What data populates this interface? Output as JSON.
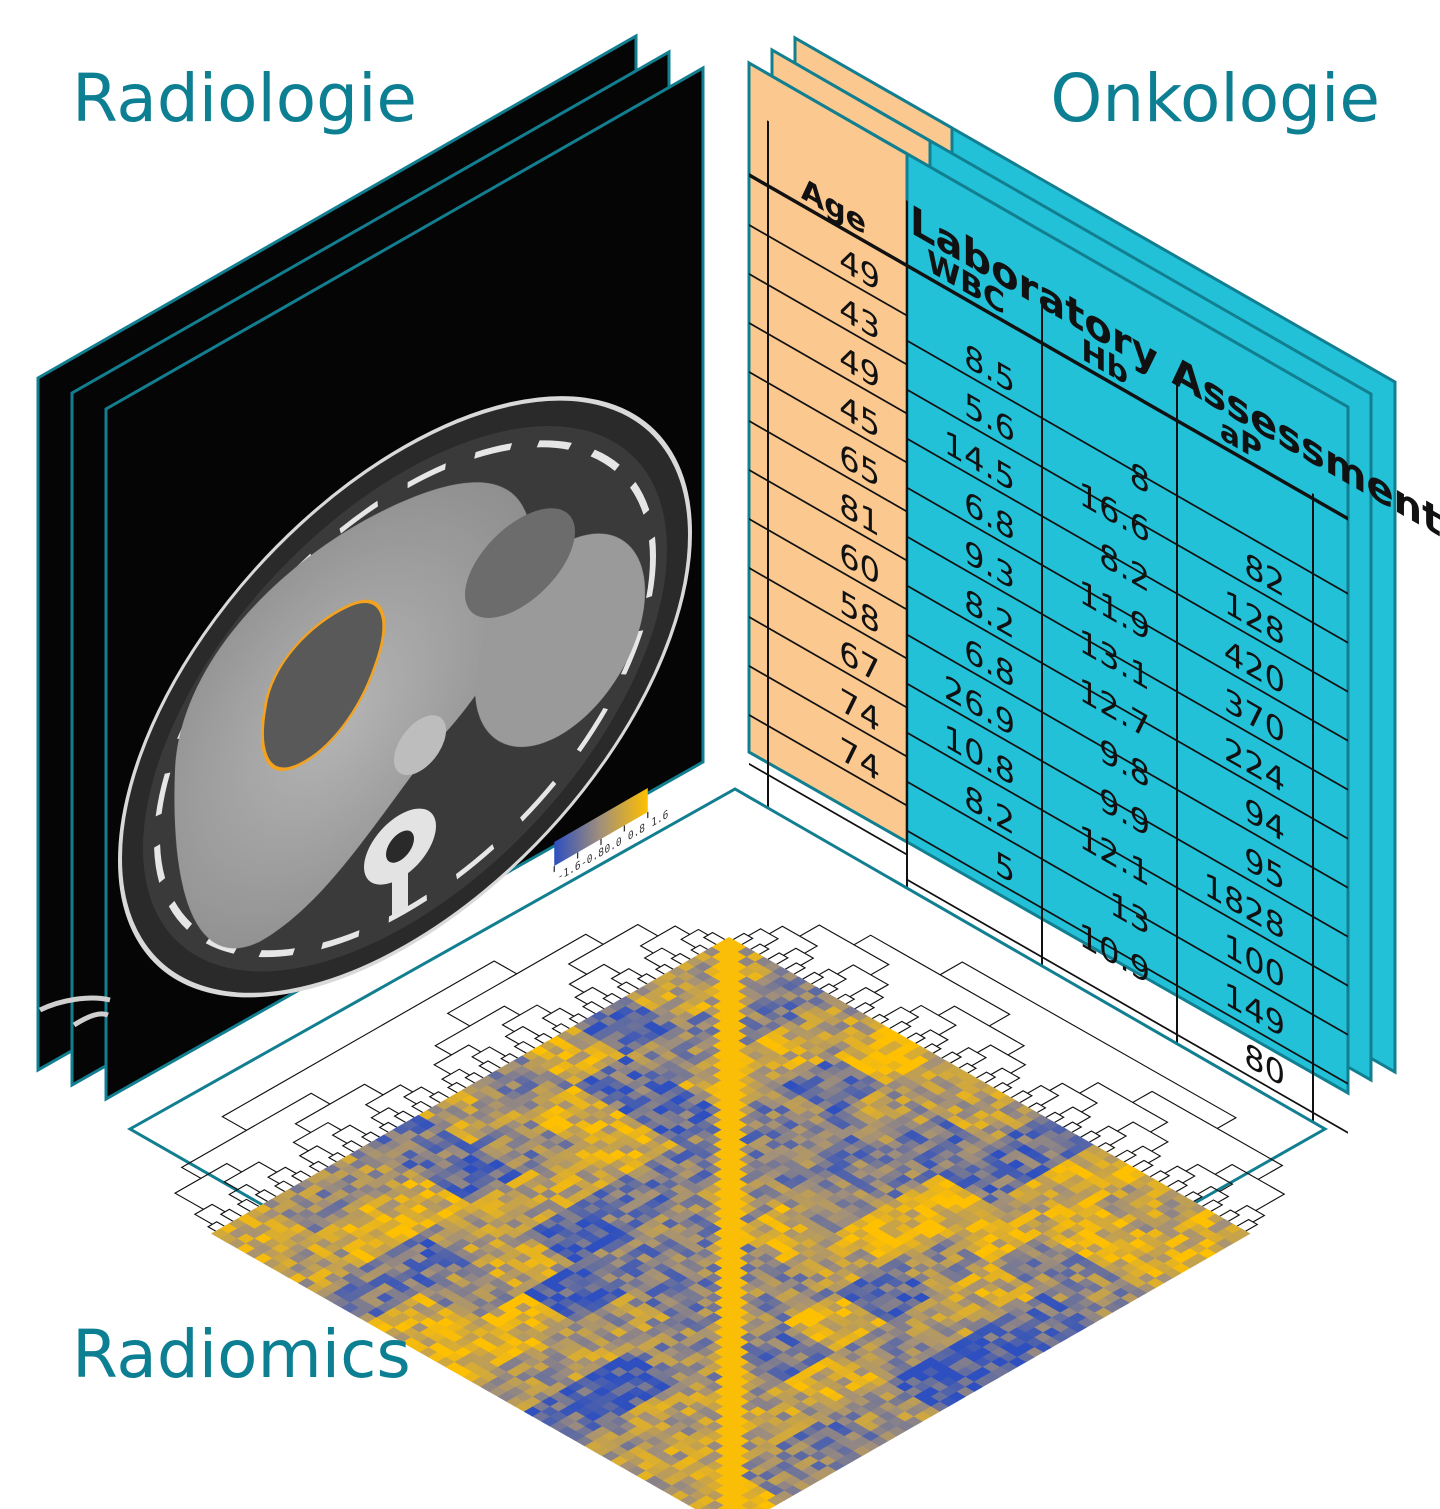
{
  "labels": {
    "radiologie": "Radiologie",
    "onkologie": "Onkologie",
    "radiomics": "Radiomics"
  },
  "colors": {
    "accent": "#0d7f93",
    "panel_border": "#127f91",
    "table_orange": "#fbc990",
    "table_cyan": "#22c1d8",
    "heat_low": "#2d4fbf",
    "heat_mid": "#a2907a",
    "heat_high": "#ffc000",
    "contour": "#f3a320"
  },
  "table": {
    "title": "Laboratory Assessment",
    "columns": [
      "Age",
      "WBC",
      "Hb",
      "aP"
    ],
    "age": [
      "49",
      "43",
      "49",
      "45",
      "65",
      "81",
      "60",
      "58",
      "67",
      "74",
      "74"
    ],
    "wbc": [
      "8.5",
      "5.6",
      "14.5",
      "6.8",
      "9.3",
      "8.2",
      "6.8",
      "26.9",
      "10.8",
      "8.2",
      "5"
    ],
    "hb": [
      "8",
      "16.6",
      "8.2",
      "11.9",
      "13.1",
      "12.7",
      "9.8",
      "9.9",
      "12.1",
      "13",
      "10.9"
    ],
    "ap": [
      "82",
      "128",
      "420",
      "370",
      "224",
      "94",
      "95",
      "1828",
      "100",
      "149",
      "80"
    ]
  },
  "heatmap": {
    "legend_ticks": [
      "1.6",
      "0.8",
      "0.0",
      "-0.8",
      "-1.6"
    ],
    "scale_min": -1.6,
    "scale_max": 1.6
  },
  "ct_panel": {
    "slices": 3
  }
}
